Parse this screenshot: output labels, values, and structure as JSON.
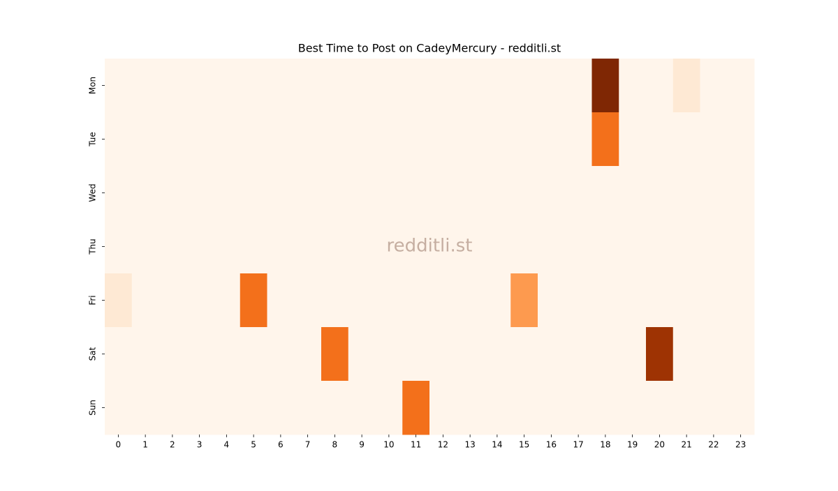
{
  "chart_data": {
    "type": "heatmap",
    "title": "Best Time to Post on CadeyMercury - redditli.st",
    "watermark": "redditli.st",
    "x": [
      0,
      1,
      2,
      3,
      4,
      5,
      6,
      7,
      8,
      9,
      10,
      11,
      12,
      13,
      14,
      15,
      16,
      17,
      18,
      19,
      20,
      21,
      22,
      23
    ],
    "y": [
      "Mon",
      "Tue",
      "Wed",
      "Thu",
      "Fri",
      "Sat",
      "Sun"
    ],
    "values": [
      [
        0,
        0,
        0,
        0,
        0,
        0,
        0,
        0,
        0,
        0,
        0,
        0,
        0,
        0,
        0,
        0,
        0,
        0,
        10,
        0,
        0,
        1,
        0,
        0
      ],
      [
        0,
        0,
        0,
        0,
        0,
        0,
        0,
        0,
        0,
        0,
        0,
        0,
        0,
        0,
        0,
        0,
        0,
        0,
        6,
        0,
        0,
        0,
        0,
        0
      ],
      [
        0,
        0,
        0,
        0,
        0,
        0,
        0,
        0,
        0,
        0,
        0,
        0,
        0,
        0,
        0,
        0,
        0,
        0,
        0,
        0,
        0,
        0,
        0,
        0
      ],
      [
        0,
        0,
        0,
        0,
        0,
        0,
        0,
        0,
        0,
        0,
        0,
        0,
        0,
        0,
        0,
        0,
        0,
        0,
        0,
        0,
        0,
        0,
        0,
        0
      ],
      [
        1,
        0,
        0,
        0,
        0,
        6,
        0,
        0,
        0,
        0,
        0,
        0,
        0,
        0,
        0,
        4.5,
        0,
        0,
        0,
        0,
        0,
        0,
        0,
        0
      ],
      [
        0,
        0,
        0,
        0,
        0,
        0,
        0,
        0,
        6,
        0,
        0,
        0,
        0,
        0,
        0,
        0,
        0,
        0,
        0,
        0,
        9,
        0,
        0,
        0
      ],
      [
        0,
        0,
        0,
        0,
        0,
        0,
        0,
        0,
        0,
        0,
        0,
        6,
        0,
        0,
        0,
        0,
        0,
        0,
        0,
        0,
        0,
        0,
        0,
        0
      ]
    ],
    "colors": [
      "#fff5eb",
      "#fee6ce",
      "#fdd0a2",
      "#fdae6b",
      "#fd8d3c",
      "#f16913",
      "#d94801",
      "#a63603",
      "#7f2704"
    ]
  }
}
